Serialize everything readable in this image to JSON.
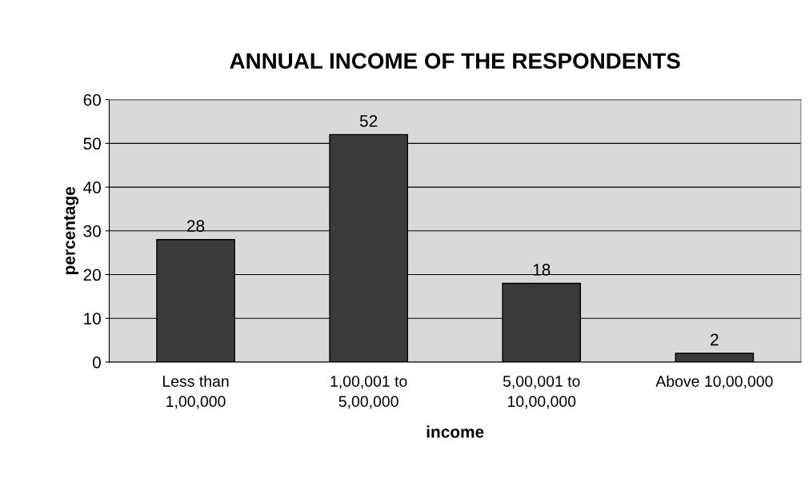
{
  "chart_data": {
    "type": "bar",
    "title": "ANNUAL INCOME OF THE RESPONDENTS",
    "xlabel": "income",
    "ylabel": "percentage",
    "categories": [
      "Less than\n1,00,000",
      "1,00,001 to\n5,00,000",
      "5,00,001 to\n10,00,000",
      "Above 10,00,000"
    ],
    "values": [
      28,
      52,
      18,
      2
    ],
    "color": "#3a3a3a",
    "ylim": [
      0,
      60
    ],
    "yticks": [
      0,
      10,
      20,
      30,
      40,
      50,
      60
    ],
    "grid": "y",
    "data_labels": true,
    "legend": false
  }
}
